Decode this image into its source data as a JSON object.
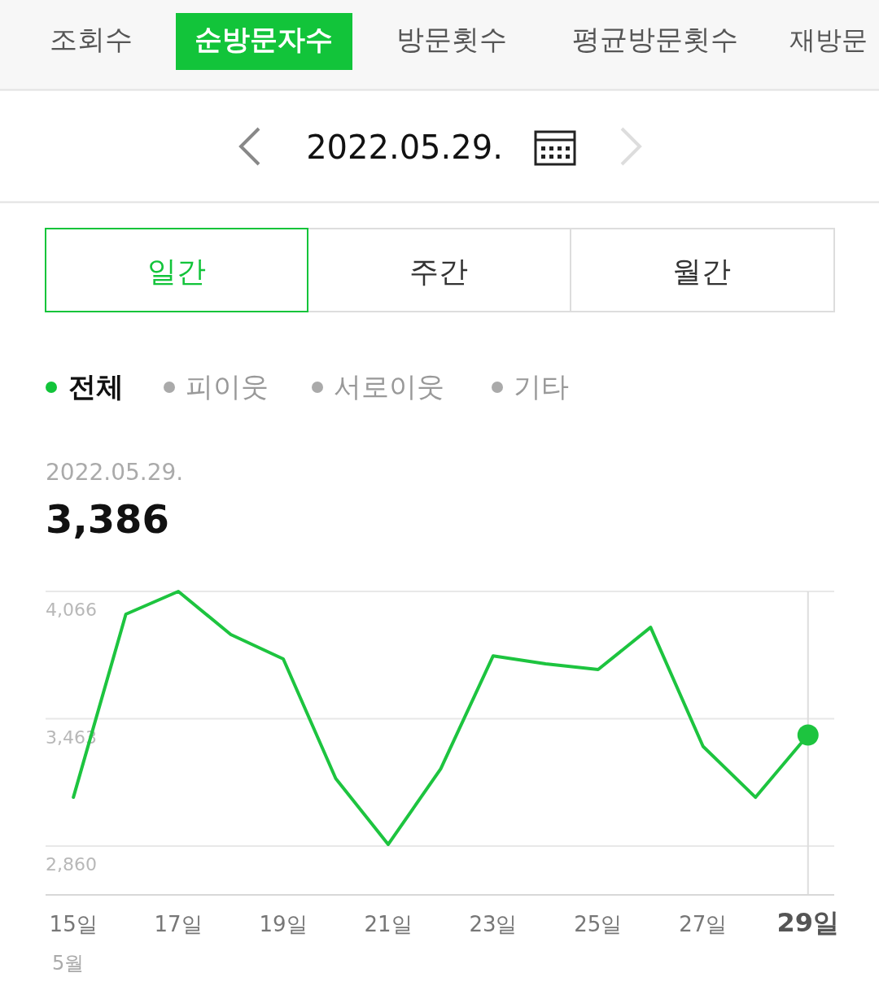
{
  "chart_data": {
    "type": "line",
    "x": [
      15,
      16,
      17,
      18,
      19,
      20,
      21,
      22,
      23,
      24,
      25,
      26,
      27,
      28,
      29
    ],
    "series": [
      {
        "name": "전체",
        "color": "#1dc43f",
        "values": [
          3091,
          3958,
          4066,
          3862,
          3746,
          3180,
          2868,
          3226,
          3761,
          3723,
          3696,
          3896,
          3332,
          3091,
          3386
        ]
      },
      {
        "type": "scatter",
        "marker": "circle",
        "color": "#1dc43f",
        "x": [
          29
        ],
        "values": [
          3386
        ]
      }
    ],
    "xlim": [
      14.47,
      29.5
    ],
    "xticks": [
      {
        "value": 15,
        "label": "15일"
      },
      {
        "value": 17,
        "label": "17일"
      },
      {
        "value": 19,
        "label": "19일"
      },
      {
        "value": 21,
        "label": "21일"
      },
      {
        "value": 23,
        "label": "23일"
      },
      {
        "value": 25,
        "label": "25일"
      },
      {
        "value": 27,
        "label": "27일"
      },
      {
        "value": 29,
        "label": "29일"
      }
    ],
    "ylim": [
      2629,
      4066
    ],
    "yticks": [
      {
        "value": 2860,
        "label": "2,860"
      },
      {
        "value": 3463,
        "label": "3,463"
      },
      {
        "value": 4066,
        "label": "4,066"
      }
    ],
    "grid": "y",
    "marker": "none",
    "line_style": "solid",
    "ref_lines": [
      {
        "axis": "x",
        "value": 29,
        "color": "#dddddd"
      }
    ],
    "annotations": [
      "조회수",
      "순방문자수",
      "방문횟수",
      "평균방문횟수",
      "재방문",
      "2022.05.29.",
      "일간",
      "주간",
      "월간",
      "피이웃",
      "서로이웃",
      "기타",
      "2022.05.29.",
      "3,386",
      "5월"
    ]
  }
}
